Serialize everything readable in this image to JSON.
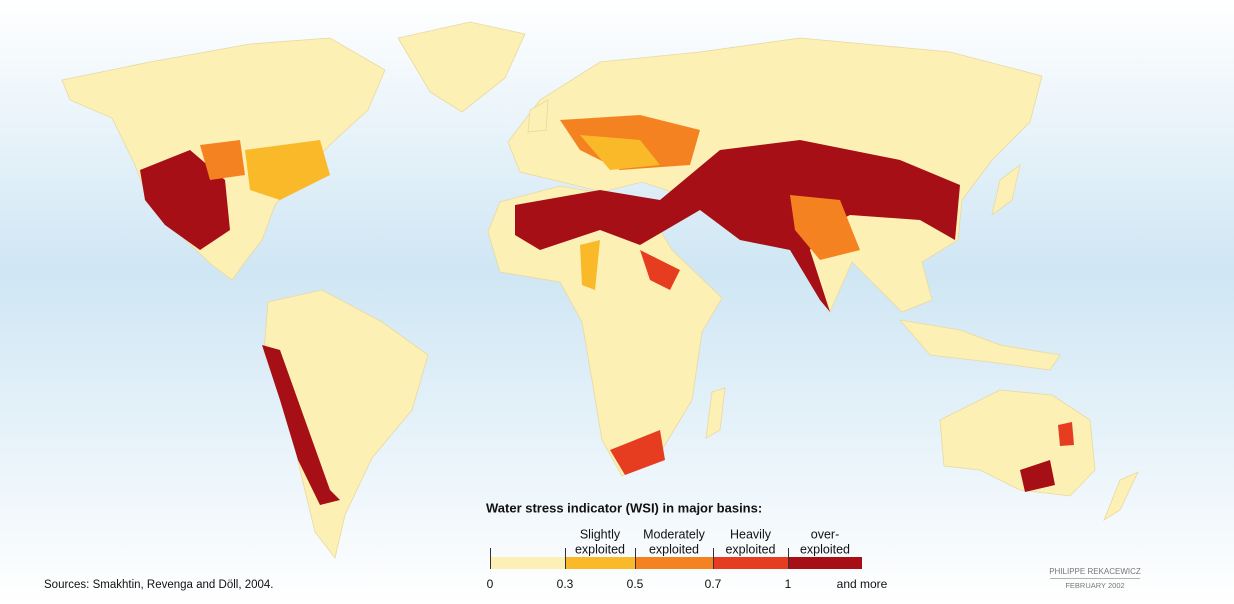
{
  "legend": {
    "title": "Water stress indicator (WSI) in major basins:",
    "bins": [
      {
        "color": "#fdf0b4"
      },
      {
        "color": "#f9b928",
        "label": [
          "Slightly",
          "exploited"
        ]
      },
      {
        "color": "#f58220",
        "label": [
          "Moderately",
          "exploited"
        ]
      },
      {
        "color": "#e63c1f",
        "label": [
          "Heavily",
          "exploited"
        ]
      },
      {
        "color": "#a50f15",
        "label": [
          "over-",
          "exploited"
        ]
      }
    ],
    "ticks": [
      0,
      0.3,
      0.5,
      0.7,
      1
    ],
    "tail": "and more"
  },
  "source": "Sources:  Smakhtin, Revenga and Döll, 2004.",
  "credit": {
    "author": "PHILIPPE REKACEWICZ",
    "date": "FEBRUARY 2002"
  }
}
